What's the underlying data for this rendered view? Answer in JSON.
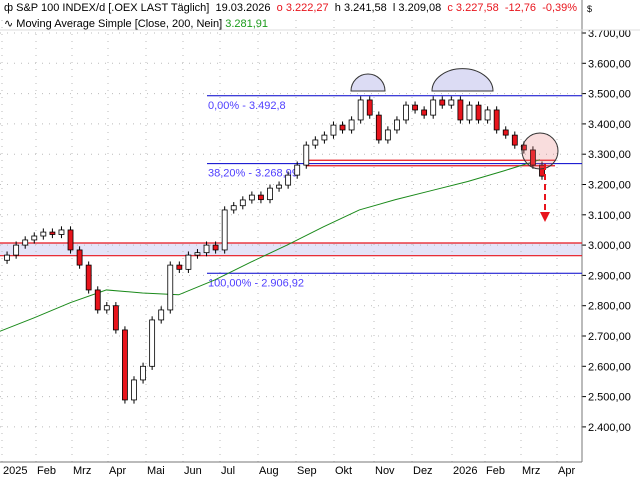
{
  "header": {
    "title": "S&P 100 INDEX/d [.OEX LAST Täglich]",
    "date": "19.03.2026",
    "open": "o 3.222,27",
    "high": "h 3.241,58",
    "low": "l 3.209,08",
    "close": "c 3.227,58",
    "change": "-12,76",
    "change_pct": "-0,39%",
    "currency": "$"
  },
  "indicator": {
    "label": "Moving Average Simple  [Close, 200, Nein]",
    "value": "3.281,91"
  },
  "colors": {
    "up": "#ffffff",
    "down": "#e8141c",
    "ma": "#1a8a1a",
    "fib": "#0000cc",
    "support": "#e8141c",
    "zone": "#e4e4f8"
  },
  "chart_data": {
    "type": "candlestick",
    "x_ticks": [
      "2025",
      "Feb",
      "Mrz",
      "Apr",
      "Mai",
      "Jun",
      "Jul",
      "Aug",
      "Sep",
      "Okt",
      "Nov",
      "Dez",
      "2026",
      "Feb",
      "Mrz",
      "Apr"
    ],
    "y_ticks": [
      "3.700,00",
      "3.600,00",
      "3.500,00",
      "3.400,00",
      "3.300,00",
      "3.200,00",
      "3.100,00",
      "3.000,00",
      "2.900,00",
      "2.800,00",
      "2.700,00",
      "2.600,00",
      "2.500,00",
      "2.400,00"
    ],
    "ylim": [
      2320,
      3760
    ],
    "weekly_close": [
      2950,
      2967,
      3000,
      3017,
      3030,
      3043,
      3035,
      3050,
      2984,
      2934,
      2852,
      2786,
      2800,
      2720,
      2489,
      2555,
      2600,
      2753,
      2786,
      2934,
      2920,
      2967,
      2975,
      3000,
      2984,
      3116,
      3130,
      3149,
      3165,
      3150,
      3188,
      3198,
      3231,
      3264,
      3330,
      3347,
      3363,
      3396,
      3380,
      3413,
      3479,
      3429,
      3347,
      3380,
      3413,
      3462,
      3446,
      3429,
      3479,
      3462,
      3479,
      3413,
      3462,
      3413,
      3446,
      3380,
      3363,
      3330,
      3314,
      3264,
      3227.58
    ],
    "ma200": [
      2713,
      2760,
      2810,
      2852,
      2842,
      2836,
      2885,
      2944,
      3000,
      3060,
      3116,
      3150,
      3180,
      3210,
      3245,
      3281.91
    ],
    "fibonacci": [
      {
        "label": "0,00% - 3.492,8",
        "value": 3492.8
      },
      {
        "label": "38,20% - 3.268,99",
        "value": 3268.99
      },
      {
        "label": "100,00% - 2.906,92",
        "value": 2906.92
      }
    ],
    "support_zone": [
      2965,
      3007
    ],
    "neckline": [
      3262,
      3280
    ]
  }
}
